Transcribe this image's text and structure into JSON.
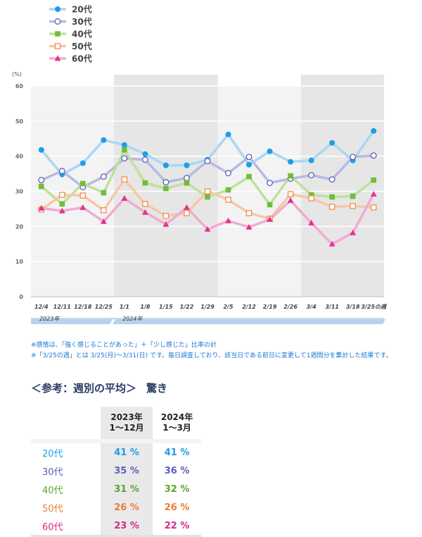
{
  "chart_data": {
    "type": "line",
    "ylabel": "(%)",
    "ylim": [
      0,
      60
    ],
    "yticks": [
      0,
      10,
      20,
      30,
      40,
      50,
      60
    ],
    "grid": true,
    "legend_position": "top-left",
    "categories": [
      "12/4",
      "12/11",
      "12/18",
      "12/25",
      "1/1",
      "1/8",
      "1/15",
      "1/22",
      "1/29",
      "2/5",
      "2/12",
      "2/19",
      "2/26",
      "3/4",
      "3/11",
      "3/18",
      "3/25の週"
    ],
    "year_labels": [
      {
        "label": "2023年",
        "from": 0,
        "to": 3
      },
      {
        "label": "2024年",
        "from": 4,
        "to": 16
      }
    ],
    "series": [
      {
        "name": "20代",
        "color": "#1e9de8",
        "line_color": "#a8d8f3",
        "marker": "filled-circle",
        "values": [
          41.8,
          34.8,
          38.0,
          44.6,
          43.2,
          40.6,
          37.4,
          37.4,
          39.0,
          46.2,
          37.6,
          41.4,
          38.4,
          38.8,
          43.8,
          38.8,
          47.2
        ]
      },
      {
        "name": "30代",
        "color": "#5b5fb8",
        "line_color": "#b6b9e4",
        "marker": "open-circle",
        "values": [
          33.2,
          35.8,
          31.2,
          34.2,
          39.4,
          39.0,
          32.6,
          33.8,
          38.6,
          35.2,
          39.8,
          32.4,
          33.6,
          34.6,
          33.4,
          39.8,
          40.2
        ]
      },
      {
        "name": "40代",
        "color": "#72bc3a",
        "line_color": "#bfe19c",
        "marker": "filled-square",
        "values": [
          31.4,
          26.4,
          32.2,
          29.6,
          41.8,
          32.4,
          30.8,
          32.4,
          28.4,
          30.4,
          34.2,
          26.2,
          34.4,
          29.0,
          28.4,
          28.6,
          33.2
        ]
      },
      {
        "name": "50代",
        "color": "#ee8d4e",
        "line_color": "#f7c7a6",
        "marker": "open-square",
        "values": [
          24.8,
          29.0,
          28.8,
          24.6,
          33.4,
          26.4,
          23.0,
          23.8,
          30.0,
          27.6,
          23.8,
          22.2,
          29.2,
          28.0,
          25.6,
          25.8,
          25.4
        ]
      },
      {
        "name": "60代",
        "color": "#e0338f",
        "line_color": "#f3aad1",
        "marker": "filled-triangle",
        "values": [
          25.2,
          24.4,
          25.4,
          21.4,
          28.0,
          24.0,
          20.6,
          25.4,
          19.2,
          21.6,
          19.8,
          22.0,
          27.4,
          21.0,
          15.0,
          18.2,
          29.2
        ]
      }
    ]
  },
  "notes": [
    "※感情は、「強く感じることがあった」＋「少し感じた」比率の計",
    "※「3/25の週」とは 3/25(月)～3/31(日) です。毎日調査しており、該当日である前日に変更して1週間分を集計した結果です。"
  ],
  "reference": {
    "title": "＜参考：週別の平均＞",
    "subtitle": "驚き",
    "columns": [
      "2023年\n1～12月",
      "2024年\n1～3月"
    ],
    "rows": [
      {
        "label": "20代",
        "color": "#1e9de8",
        "v2023": "41 %",
        "v2024": "41 %"
      },
      {
        "label": "30代",
        "color": "#5b5fb8",
        "v2023": "35 %",
        "v2024": "36 %"
      },
      {
        "label": "40代",
        "color": "#5aa62c",
        "v2023": "31 %",
        "v2024": "32 %"
      },
      {
        "label": "50代",
        "color": "#ec7c34",
        "v2023": "26 %",
        "v2024": "26 %"
      },
      {
        "label": "60代",
        "color": "#d42a88",
        "v2023": "23 %",
        "v2024": "22 %"
      }
    ]
  }
}
